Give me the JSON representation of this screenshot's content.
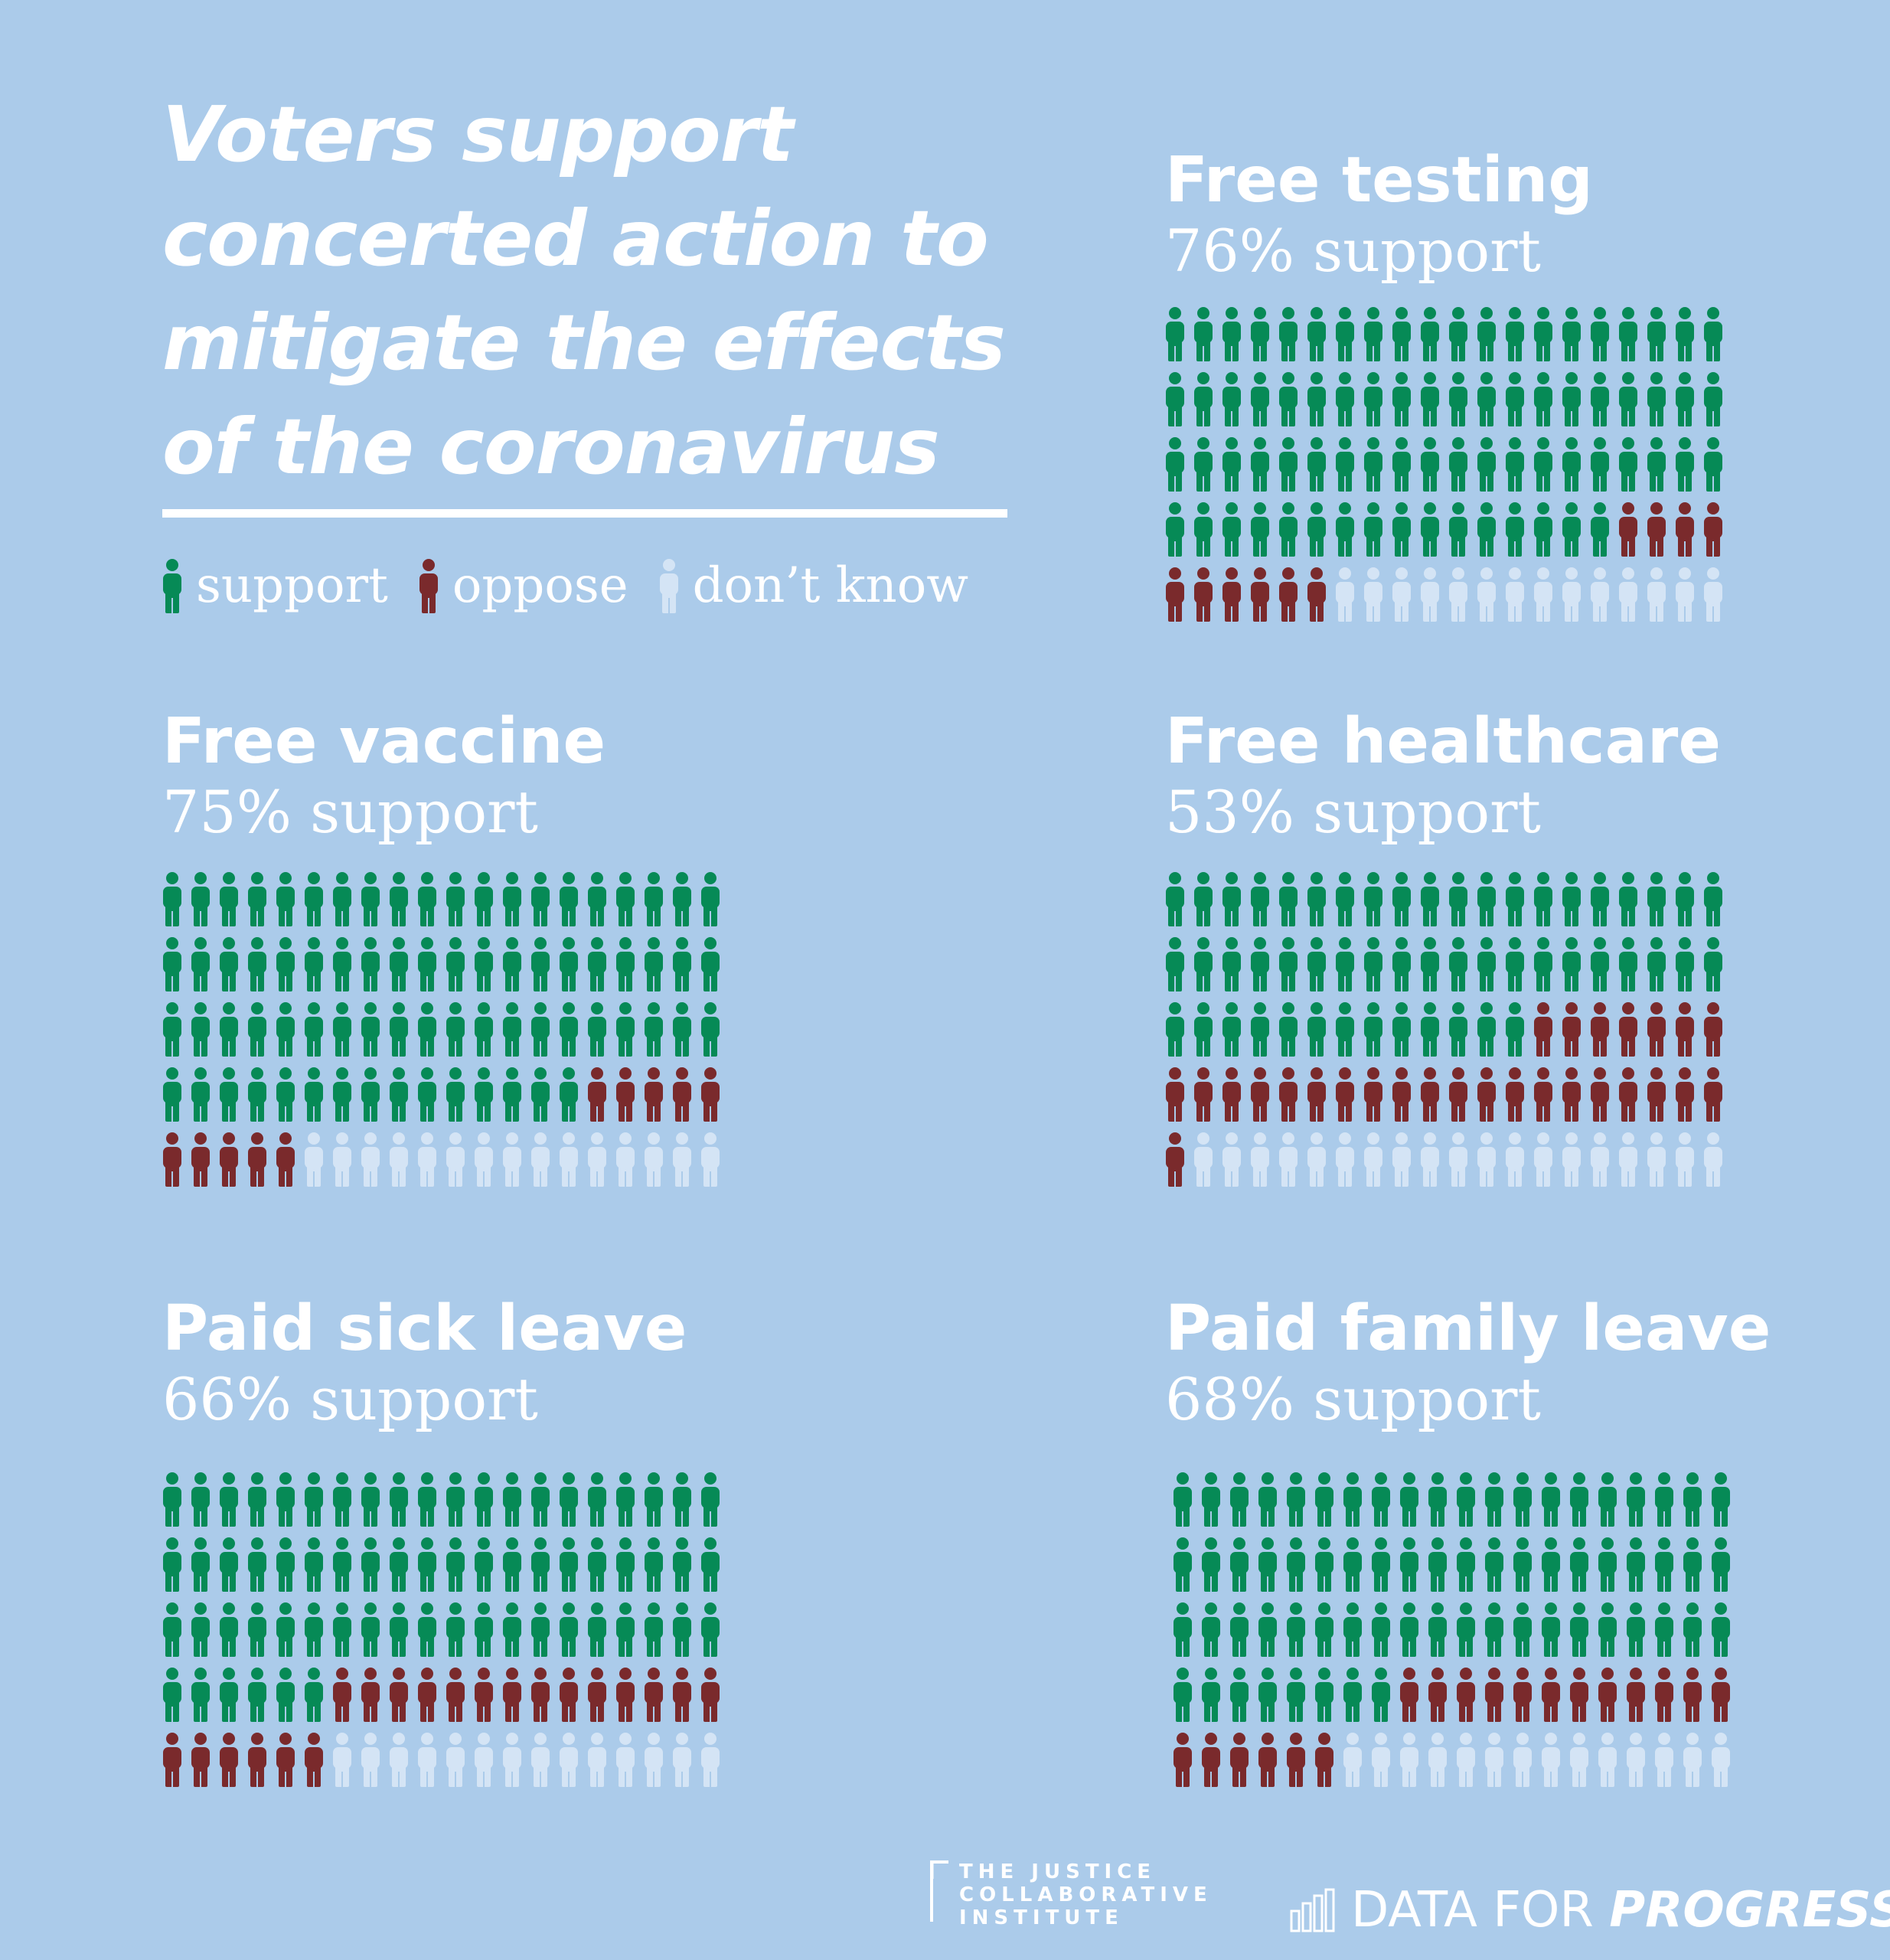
{
  "headline": {
    "line1": "Voters support",
    "line2": "concerted action to",
    "line3": "mitigate the effects",
    "line4": "of the coronavirus"
  },
  "legend": {
    "support": "support",
    "oppose": "oppose",
    "dont_know": "don’t know"
  },
  "colors": {
    "background": "#abcbea",
    "support": "#068a56",
    "oppose": "#7a2a2c",
    "dont_know": "#d4e4f5"
  },
  "chart_data": [
    {
      "type": "icon-array",
      "title": "Free testing",
      "subtitle": "76% support",
      "support": 76,
      "oppose": 10,
      "dont_know": 14
    },
    {
      "type": "icon-array",
      "title": "Free vaccine",
      "subtitle": "75% support",
      "support": 75,
      "oppose": 10,
      "dont_know": 15
    },
    {
      "type": "icon-array",
      "title": "Free healthcare",
      "subtitle": "53% support",
      "support": 53,
      "oppose": 28,
      "dont_know": 19
    },
    {
      "type": "icon-array",
      "title": "Paid sick leave",
      "subtitle": "66% support",
      "support": 66,
      "oppose": 20,
      "dont_know": 14
    },
    {
      "type": "icon-array",
      "title": "Paid family leave",
      "subtitle": "68% support",
      "support": 68,
      "oppose": 18,
      "dont_know": 14
    }
  ],
  "footer": {
    "jci_line1": "THE JUSTICE",
    "jci_line2": "COLLABORATIVE",
    "jci_line3": "INSTITUTE",
    "dfp_regular": "DATA FOR ",
    "dfp_bold": "PROGRESS"
  }
}
